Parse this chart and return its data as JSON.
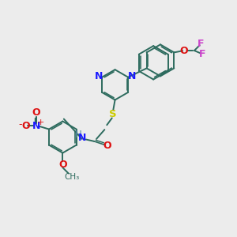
{
  "background_color": "#ececec",
  "bond_color": "#2d6b5e",
  "atom_colors": {
    "N": "#1a1aff",
    "O": "#dd1111",
    "S": "#cccc00",
    "F": "#cc44cc",
    "H": "#5588aa",
    "plus": "#dd1111",
    "minus": "#dd1111"
  },
  "figsize": [
    3.0,
    3.0
  ],
  "dpi": 100,
  "xlim": [
    0,
    10
  ],
  "ylim": [
    0,
    10
  ]
}
